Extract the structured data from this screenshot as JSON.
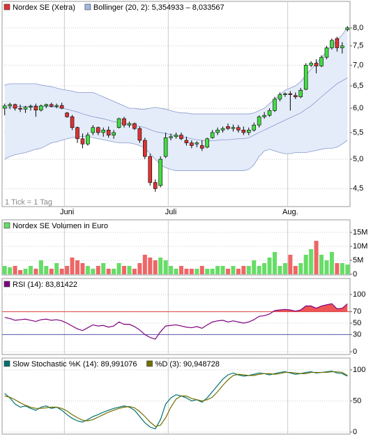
{
  "chart_data": [
    {
      "type": "candlestick",
      "legend": [
        {
          "label": "Nordex SE (Xetra)",
          "color": "#dd3333"
        },
        {
          "label": "Bollinger (20, 2): 5,354933 – 8,033567",
          "color": "#9fb8e8"
        }
      ],
      "footnote": "1 Tick = 1 Tag",
      "categories": [
        null,
        null,
        null,
        null,
        null,
        null,
        null,
        null,
        null,
        null,
        null,
        null,
        "Juni",
        null,
        null,
        null,
        null,
        null,
        null,
        null,
        null,
        null,
        null,
        null,
        null,
        null,
        null,
        null,
        null,
        null,
        null,
        null,
        "Juli",
        null,
        null,
        null,
        null,
        null,
        null,
        null,
        null,
        null,
        null,
        null,
        null,
        null,
        null,
        null,
        null,
        null,
        null,
        null,
        null,
        null,
        null,
        "Aug.",
        null,
        null,
        null,
        null,
        null,
        null,
        null,
        null,
        null,
        null,
        null
      ],
      "open": [
        6.0,
        6.05,
        6.08,
        6.0,
        5.98,
        6.02,
        6.04,
        5.96,
        6.05,
        6.08,
        6.04,
        6.06,
        5.9,
        5.82,
        5.6,
        5.38,
        5.28,
        5.5,
        5.6,
        5.5,
        5.55,
        5.45,
        5.6,
        5.78,
        5.65,
        5.68,
        5.58,
        5.35,
        5.05,
        4.6,
        4.55,
        5.05,
        5.4,
        5.42,
        5.45,
        5.35,
        5.3,
        5.28,
        5.25,
        5.22,
        5.4,
        5.5,
        5.55,
        5.62,
        5.58,
        5.6,
        5.55,
        5.5,
        5.55,
        5.65,
        5.82,
        5.85,
        5.95,
        6.2,
        6.3,
        6.32,
        6.28,
        6.25,
        6.42,
        7.0,
        7.05,
        6.98,
        7.2,
        7.45,
        7.7,
        7.45,
        7.95
      ],
      "high": [
        6.1,
        6.12,
        6.1,
        6.08,
        6.05,
        6.08,
        6.1,
        6.08,
        6.1,
        6.12,
        6.1,
        6.12,
        5.92,
        5.86,
        5.62,
        5.48,
        5.5,
        5.65,
        5.62,
        5.6,
        5.62,
        5.55,
        5.8,
        5.82,
        5.72,
        5.7,
        5.62,
        5.4,
        5.1,
        4.65,
        5.05,
        5.5,
        5.48,
        5.5,
        5.5,
        5.42,
        5.35,
        5.33,
        5.35,
        5.4,
        5.55,
        5.6,
        5.62,
        5.68,
        5.66,
        5.65,
        5.62,
        5.6,
        5.7,
        5.85,
        5.92,
        6.0,
        6.25,
        6.35,
        6.35,
        6.38,
        6.35,
        6.45,
        7.05,
        7.1,
        7.15,
        7.25,
        7.5,
        7.7,
        7.75,
        7.6,
        8.05
      ],
      "low": [
        5.85,
        5.98,
        5.95,
        5.92,
        5.9,
        5.95,
        5.82,
        5.93,
        6.0,
        6.02,
        6.0,
        5.98,
        5.8,
        5.55,
        5.3,
        5.2,
        5.25,
        5.45,
        5.45,
        5.42,
        5.4,
        5.38,
        5.58,
        5.6,
        5.6,
        5.55,
        5.3,
        5.0,
        4.55,
        4.45,
        4.52,
        5.02,
        5.35,
        5.38,
        5.35,
        5.25,
        5.2,
        5.22,
        5.15,
        5.2,
        5.38,
        5.45,
        5.5,
        5.55,
        5.52,
        5.5,
        5.45,
        5.45,
        5.52,
        5.6,
        5.78,
        5.82,
        5.92,
        6.15,
        6.25,
        5.95,
        6.2,
        6.22,
        6.4,
        6.95,
        6.8,
        6.95,
        7.15,
        7.4,
        7.35,
        7.3,
        7.9
      ],
      "close": [
        6.05,
        6.08,
        6.0,
        5.98,
        6.02,
        6.04,
        5.96,
        6.05,
        6.08,
        6.04,
        6.06,
        6.0,
        5.82,
        5.6,
        5.38,
        5.28,
        5.45,
        5.6,
        5.5,
        5.55,
        5.45,
        5.5,
        5.78,
        5.65,
        5.68,
        5.58,
        5.35,
        5.05,
        4.6,
        4.5,
        5.0,
        5.4,
        5.42,
        5.45,
        5.38,
        5.3,
        5.25,
        5.3,
        5.2,
        5.38,
        5.5,
        5.55,
        5.58,
        5.58,
        5.6,
        5.55,
        5.5,
        5.55,
        5.65,
        5.82,
        5.85,
        5.95,
        6.2,
        6.3,
        6.32,
        6.3,
        6.25,
        6.4,
        7.0,
        7.05,
        6.98,
        7.2,
        7.45,
        7.65,
        7.45,
        7.5,
        8.0
      ],
      "bollinger": {
        "color": "#8899cc",
        "fill": "#e4ecfa",
        "upper": [
          6.52,
          6.55,
          6.55,
          6.55,
          6.55,
          6.55,
          6.55,
          6.52,
          6.5,
          6.48,
          6.45,
          6.42,
          6.4,
          6.38,
          6.35,
          6.35,
          6.35,
          6.35,
          6.3,
          6.25,
          6.2,
          6.15,
          6.1,
          6.05,
          6.0,
          6.0,
          5.98,
          5.98,
          6.0,
          6.02,
          6.0,
          5.98,
          5.95,
          5.92,
          5.9,
          5.9,
          5.88,
          5.88,
          5.88,
          5.88,
          5.88,
          5.88,
          5.88,
          5.88,
          5.88,
          5.88,
          5.88,
          5.88,
          5.9,
          5.95,
          6.0,
          6.1,
          6.2,
          6.3,
          6.4,
          6.45,
          6.5,
          6.6,
          6.75,
          6.9,
          7.05,
          7.2,
          7.35,
          7.5,
          7.65,
          7.8,
          8.03
        ],
        "middle": [
          6.0,
          6.02,
          6.03,
          6.04,
          6.04,
          6.05,
          6.05,
          6.04,
          6.04,
          6.03,
          6.02,
          6.0,
          5.98,
          5.95,
          5.92,
          5.88,
          5.85,
          5.82,
          5.8,
          5.78,
          5.75,
          5.72,
          5.7,
          5.68,
          5.66,
          5.64,
          5.62,
          5.6,
          5.56,
          5.52,
          5.5,
          5.48,
          5.46,
          5.44,
          5.42,
          5.4,
          5.38,
          5.36,
          5.35,
          5.34,
          5.34,
          5.35,
          5.36,
          5.36,
          5.37,
          5.38,
          5.38,
          5.4,
          5.45,
          5.5,
          5.55,
          5.6,
          5.65,
          5.7,
          5.75,
          5.8,
          5.85,
          5.9,
          5.98,
          6.05,
          6.15,
          6.25,
          6.35,
          6.45,
          6.55,
          6.62,
          6.69
        ],
        "lower": [
          5.0,
          5.05,
          5.08,
          5.1,
          5.12,
          5.15,
          5.18,
          5.2,
          5.25,
          5.3,
          5.32,
          5.35,
          5.38,
          5.4,
          5.42,
          5.42,
          5.42,
          5.4,
          5.38,
          5.36,
          5.34,
          5.32,
          5.3,
          5.3,
          5.3,
          5.28,
          5.25,
          5.2,
          5.1,
          5.0,
          4.9,
          4.85,
          4.82,
          4.8,
          4.8,
          4.8,
          4.8,
          4.8,
          4.8,
          4.8,
          4.8,
          4.8,
          4.8,
          4.8,
          4.8,
          4.8,
          4.8,
          4.82,
          4.9,
          5.05,
          5.15,
          5.18,
          5.15,
          5.12,
          5.1,
          5.1,
          5.12,
          5.12,
          5.12,
          5.14,
          5.16,
          5.18,
          5.2,
          5.2,
          5.22,
          5.28,
          5.35
        ]
      },
      "up_color": "#44dd44",
      "down_color": "#dd3333",
      "log_scale": true,
      "ylim": [
        4.22,
        8.45
      ],
      "yticks": [
        {
          "value": 4.5,
          "label": "4,5"
        },
        {
          "value": 5,
          "label": "5,0"
        },
        {
          "value": 5.5,
          "label": "5,5"
        },
        {
          "value": 6,
          "label": "6,0"
        },
        {
          "value": 6.5,
          "label": "6,5"
        },
        {
          "value": 7,
          "label": "7,0"
        },
        {
          "value": 7.5,
          "label": "7,5"
        },
        {
          "value": 8,
          "label": "8,0"
        }
      ],
      "grid": true
    },
    {
      "type": "bar",
      "legend": [
        {
          "label": "Nordex SE Volumen in Euro",
          "color": "#66dd66"
        }
      ],
      "values": [
        3,
        2.5,
        3,
        1.5,
        2,
        3,
        2,
        5,
        3,
        2,
        4,
        2,
        3,
        6,
        5,
        4,
        3,
        2,
        3,
        4,
        2,
        2,
        4,
        3,
        3,
        2,
        4,
        7,
        6,
        5,
        6,
        5,
        3,
        2,
        3,
        2,
        2,
        2,
        3,
        2,
        2,
        3,
        3,
        2,
        3,
        2,
        3,
        3,
        5,
        3,
        4,
        6,
        8,
        3,
        4,
        7,
        3,
        4,
        7,
        9,
        12,
        7,
        5,
        8,
        4,
        4,
        3.5
      ],
      "up_color": "#66dd66",
      "down_color": "#ee6666",
      "ylim": [
        0,
        15
      ],
      "yticks": [
        0,
        {
          "value": 5,
          "label": "5M"
        },
        {
          "value": 10,
          "label": "10M"
        },
        {
          "value": 15,
          "label": "15M"
        }
      ],
      "grid": true
    },
    {
      "type": "line",
      "series": [
        {
          "name": "RSI (14): 83,81422",
          "color": "#800080",
          "values": [
            60,
            58,
            55,
            56,
            57,
            55,
            53,
            56,
            57,
            55,
            56,
            54,
            50,
            45,
            40,
            37,
            42,
            47,
            45,
            46,
            43,
            45,
            52,
            48,
            48,
            44,
            38,
            30,
            25,
            22,
            35,
            45,
            46,
            47,
            45,
            43,
            42,
            44,
            41,
            47,
            52,
            54,
            55,
            52,
            54,
            52,
            50,
            52,
            56,
            62,
            63,
            66,
            72,
            73,
            74,
            73,
            71,
            73,
            80,
            80,
            76,
            80,
            82,
            84,
            75,
            76,
            83.81422
          ]
        }
      ],
      "fill_above": {
        "value": 70,
        "color": "#ee5555"
      },
      "ref_lines": [
        {
          "value": 70,
          "color": "#dd4444"
        },
        {
          "value": 30,
          "color": "#5555aa"
        }
      ],
      "ylim": [
        0,
        100
      ],
      "yticks": [
        0,
        30,
        50,
        70,
        100
      ],
      "grid": true
    },
    {
      "type": "line",
      "series": [
        {
          "name": "Slow Stochastic %K (14): 89,991076",
          "color": "#007070",
          "values": [
            62,
            55,
            45,
            40,
            42,
            38,
            35,
            40,
            42,
            38,
            40,
            35,
            28,
            22,
            18,
            16,
            20,
            25,
            28,
            32,
            35,
            38,
            40,
            42,
            40,
            35,
            25,
            15,
            8,
            5,
            20,
            45,
            55,
            60,
            58,
            55,
            50,
            52,
            48,
            55,
            65,
            75,
            85,
            92,
            95,
            92,
            90,
            91,
            93,
            95,
            94,
            92,
            94,
            96,
            97,
            95,
            93,
            94,
            96,
            97,
            95,
            96,
            97,
            98,
            95,
            94,
            89.991076
          ]
        },
        {
          "name": "%D (3): 90,948728",
          "color": "#707000",
          "values": [
            58,
            56,
            52,
            47,
            43,
            40,
            38,
            38,
            39,
            40,
            40,
            38,
            34,
            28,
            23,
            19,
            18,
            20,
            24,
            28,
            32,
            35,
            38,
            40,
            41,
            39,
            33,
            25,
            16,
            9,
            11,
            23,
            40,
            53,
            58,
            58,
            54,
            52,
            50,
            52,
            56,
            65,
            75,
            84,
            91,
            93,
            92,
            91,
            91,
            93,
            94,
            94,
            93,
            94,
            96,
            96,
            95,
            94,
            94,
            96,
            96,
            96,
            96,
            97,
            97,
            96,
            90.948728
          ]
        }
      ],
      "ylim": [
        0,
        100
      ],
      "yticks": [
        0,
        50,
        100
      ],
      "grid": true
    }
  ]
}
